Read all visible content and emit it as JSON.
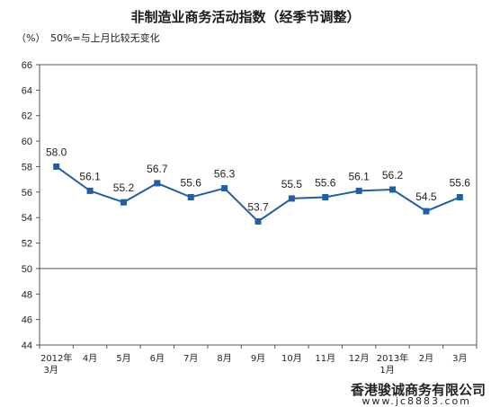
{
  "chart_data": {
    "type": "line",
    "title": "非制造业商务活动指数（经季节调整）",
    "unit_label": "（%）",
    "annotation": "50%=与上月比较无变化",
    "categories": [
      [
        "2012年",
        "3月"
      ],
      [
        "4月"
      ],
      [
        "5月"
      ],
      [
        "6月"
      ],
      [
        "7月"
      ],
      [
        "8月"
      ],
      [
        "9月"
      ],
      [
        "10月"
      ],
      [
        "11月"
      ],
      [
        "12月"
      ],
      [
        "2013年",
        "1月"
      ],
      [
        "2月"
      ],
      [
        "3月"
      ]
    ],
    "series": [
      {
        "values": [
          58.0,
          56.1,
          55.2,
          56.7,
          55.6,
          56.3,
          53.7,
          55.5,
          55.6,
          56.1,
          56.2,
          54.5,
          55.6
        ]
      }
    ],
    "value_labels": [
      "58.0",
      "56.1",
      "55.2",
      "56.7",
      "55.6",
      "56.3",
      "53.7",
      "55.5",
      "55.6",
      "56.1",
      "56.2",
      "54.5",
      "55.6"
    ],
    "ylim": [
      44,
      66
    ],
    "yticks": [
      44,
      46,
      48,
      50,
      52,
      54,
      56,
      58,
      60,
      62,
      64,
      66
    ],
    "reference_line": 50,
    "grid": false,
    "colors": {
      "line": "#1f5fa8",
      "marker": "#1f5fa8",
      "axis": "#555555",
      "text": "#222222"
    }
  },
  "watermark": {
    "company": "香港骏诚商务有限公司",
    "url": "www.jc8883.com"
  }
}
